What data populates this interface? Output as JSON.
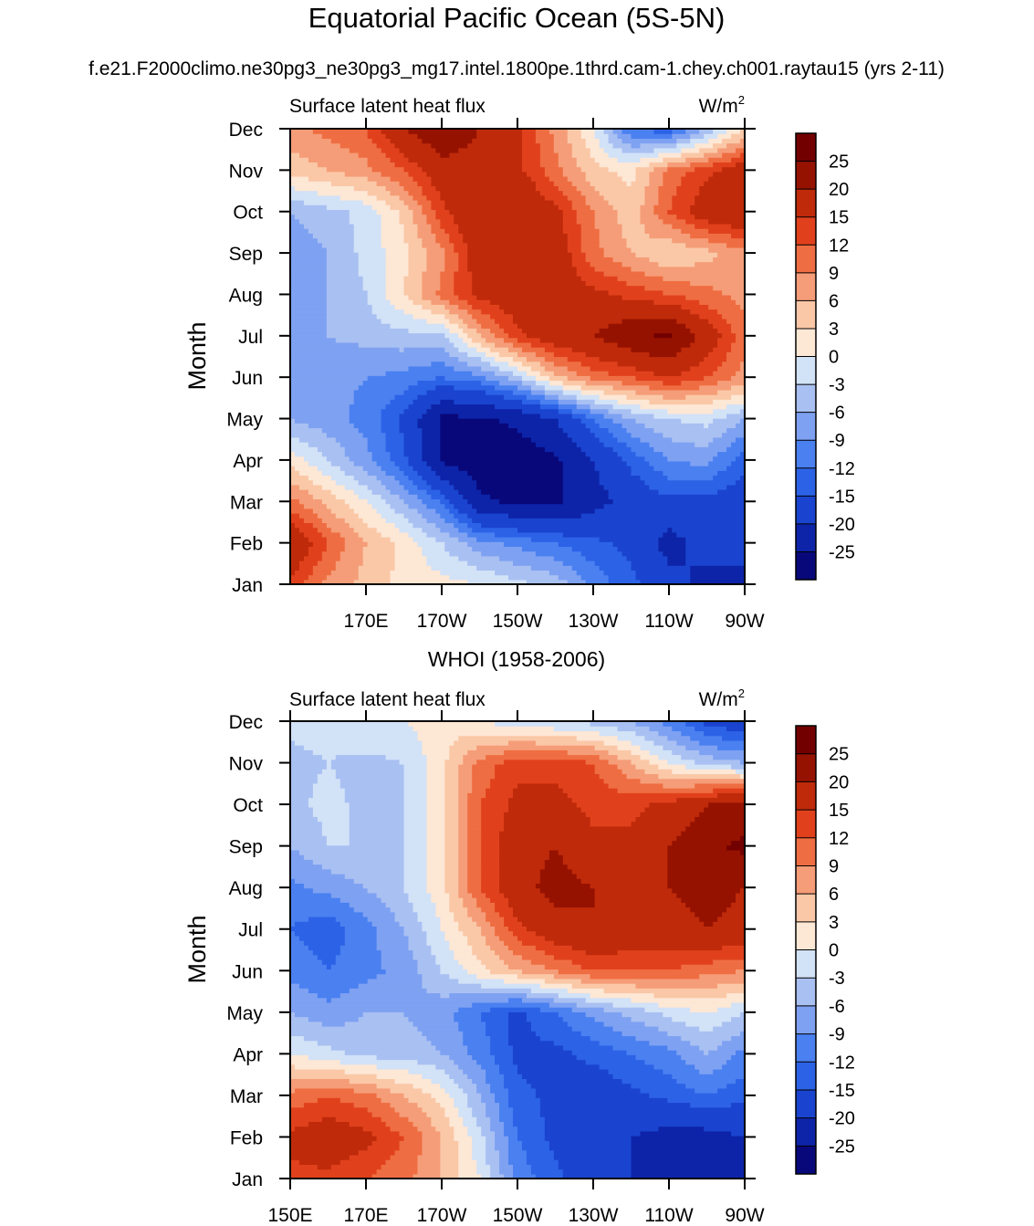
{
  "figure": {
    "title": "Equatorial Pacific Ocean (5S-5N)",
    "subtitle": "f.e21.F2000climo.ne30pg3_ne30pg3_mg17.intel.1800pe.1thrd.cam-1.chey.ch001.raytau15 (yrs 2-11)"
  },
  "chart_data": [
    {
      "type": "heatmap",
      "title": "",
      "left_label": "Surface latent heat flux",
      "units_base": "W/m",
      "units_sup": "2",
      "ylabel": "Month",
      "y_categories": [
        "Jan",
        "Feb",
        "Mar",
        "Apr",
        "May",
        "Jun",
        "Jul",
        "Aug",
        "Sep",
        "Oct",
        "Nov",
        "Dec"
      ],
      "x_tick_labels": [
        "170E",
        "170W",
        "150W",
        "130W",
        "110W",
        "90W"
      ],
      "x_tick_lons": [
        170,
        190,
        210,
        230,
        250,
        270
      ],
      "xlim": [
        150,
        270
      ],
      "lons": [
        150,
        160,
        170,
        180,
        190,
        200,
        210,
        220,
        230,
        240,
        250,
        260,
        270
      ],
      "grid": false,
      "legend": "right",
      "z": [
        [
          14,
          8,
          5,
          2,
          1,
          0,
          -2,
          -4,
          -10,
          -14,
          -18,
          -22,
          -20
        ],
        [
          20,
          12,
          6,
          2,
          -3,
          -8,
          -10,
          -12,
          -14,
          -16,
          -22,
          -18,
          -20
        ],
        [
          10,
          5,
          0,
          -6,
          -12,
          -24,
          -26,
          -26,
          -22,
          -18,
          -16,
          -16,
          -18
        ],
        [
          2,
          -3,
          -8,
          -14,
          -26,
          -28,
          -28,
          -26,
          -20,
          -14,
          -9,
          -8,
          -14
        ],
        [
          -6,
          -8,
          -10,
          -16,
          -26,
          -26,
          -24,
          -20,
          -12,
          -6,
          -3,
          -2,
          -6
        ],
        [
          -8,
          -8,
          -9,
          -10,
          -12,
          -10,
          -4,
          5,
          10,
          12,
          15,
          12,
          8
        ],
        [
          -6,
          -6,
          -5,
          -4,
          -4,
          6,
          14,
          18,
          20,
          24,
          26,
          18,
          10
        ],
        [
          -8,
          -6,
          -3,
          3,
          10,
          16,
          18,
          18,
          16,
          14,
          12,
          10,
          8
        ],
        [
          -8,
          -6,
          -2,
          2,
          8,
          18,
          20,
          18,
          10,
          6,
          3,
          5,
          8
        ],
        [
          -6,
          -4,
          -2,
          4,
          14,
          20,
          20,
          16,
          9,
          4,
          12,
          18,
          20
        ],
        [
          4,
          6,
          8,
          12,
          18,
          18,
          16,
          10,
          4,
          2,
          10,
          14,
          18
        ],
        [
          8,
          10,
          12,
          20,
          24,
          20,
          16,
          8,
          0,
          -12,
          -14,
          -6,
          3
        ]
      ]
    },
    {
      "type": "heatmap",
      "title": "WHOI (1958-2006)",
      "left_label": "Surface latent heat flux",
      "units_base": "W/m",
      "units_sup": "2",
      "ylabel": "Month",
      "y_categories": [
        "Jan",
        "Feb",
        "Mar",
        "Apr",
        "May",
        "Jun",
        "Jul",
        "Aug",
        "Sep",
        "Oct",
        "Nov",
        "Dec"
      ],
      "x_tick_labels": [
        "150E",
        "170E",
        "170W",
        "150W",
        "130W",
        "110W",
        "90W"
      ],
      "x_tick_lons": [
        150,
        170,
        190,
        210,
        230,
        250,
        270
      ],
      "xlim": [
        150,
        270
      ],
      "lons": [
        150,
        160,
        170,
        180,
        190,
        200,
        210,
        220,
        230,
        240,
        250,
        260,
        270
      ],
      "grid": false,
      "legend": "right",
      "z": [
        [
          14,
          14,
          12,
          10,
          6,
          0,
          -10,
          -14,
          -18,
          -20,
          -22,
          -24,
          -24
        ],
        [
          16,
          18,
          16,
          12,
          6,
          -2,
          -12,
          -16,
          -18,
          -20,
          -22,
          -22,
          -20
        ],
        [
          10,
          12,
          10,
          6,
          2,
          -6,
          -14,
          -16,
          -18,
          -16,
          -14,
          -12,
          -14
        ],
        [
          0,
          -2,
          -4,
          -4,
          -6,
          -10,
          -16,
          -16,
          -14,
          -12,
          -10,
          -6,
          -10
        ],
        [
          -6,
          -8,
          -6,
          -6,
          -8,
          -12,
          -16,
          -12,
          -8,
          -5,
          -2,
          0,
          -3
        ],
        [
          -10,
          -12,
          -10,
          -8,
          -3,
          2,
          6,
          9,
          12,
          12,
          12,
          10,
          9
        ],
        [
          -12,
          -14,
          -10,
          -6,
          0,
          6,
          14,
          18,
          20,
          18,
          18,
          20,
          18
        ],
        [
          -10,
          -8,
          -6,
          -3,
          2,
          12,
          18,
          22,
          20,
          18,
          20,
          22,
          20
        ],
        [
          -6,
          -3,
          -3,
          -3,
          2,
          12,
          18,
          20,
          16,
          16,
          20,
          24,
          26
        ],
        [
          -4,
          -2,
          -4,
          -3,
          2,
          12,
          16,
          16,
          14,
          14,
          16,
          20,
          22
        ],
        [
          -4,
          -3,
          -4,
          -3,
          2,
          10,
          14,
          14,
          12,
          6,
          0,
          -4,
          -6
        ],
        [
          -2,
          -2,
          0,
          0,
          2,
          0,
          -2,
          -3,
          -4,
          -6,
          -10,
          -16,
          -18
        ]
      ]
    }
  ],
  "colorbar": {
    "levels": [
      -25,
      -20,
      -15,
      -12,
      -9,
      -6,
      -3,
      0,
      3,
      6,
      9,
      12,
      15,
      20,
      25
    ],
    "level_labels": [
      "-25",
      "-20",
      "-15",
      "-12",
      "-9",
      "-6",
      "-3",
      "0",
      "3",
      "6",
      "9",
      "12",
      "15",
      "20",
      "25"
    ],
    "colors": [
      "#08087b",
      "#0d24a8",
      "#1a44cf",
      "#2c62e6",
      "#4a80f0",
      "#7ea1f2",
      "#a9c0f2",
      "#d2e2f7",
      "#fde7d5",
      "#fac8a7",
      "#f59d78",
      "#ef6d42",
      "#e0411c",
      "#bf2a0a",
      "#961200",
      "#730000"
    ]
  }
}
